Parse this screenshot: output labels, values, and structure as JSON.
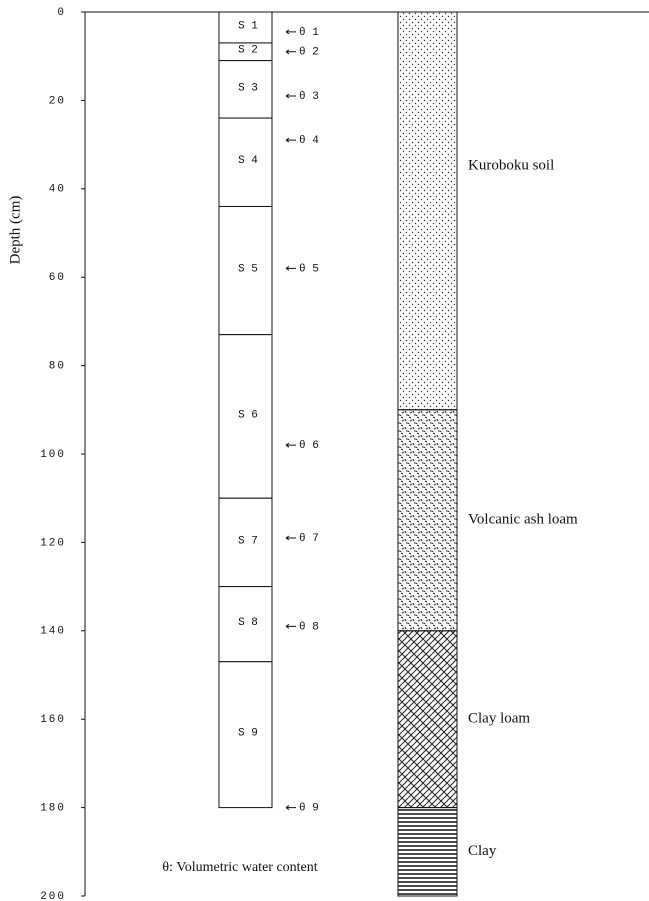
{
  "axis": {
    "label": "Depth (cm)",
    "lim": [
      0,
      200
    ],
    "ticks": [
      0,
      20,
      40,
      60,
      80,
      100,
      120,
      140,
      160,
      180,
      200
    ]
  },
  "sample_layers": [
    {
      "label": "S 1",
      "top": 0,
      "bottom": 7
    },
    {
      "label": "S 2",
      "top": 7,
      "bottom": 11
    },
    {
      "label": "S 3",
      "top": 11,
      "bottom": 24
    },
    {
      "label": "S 4",
      "top": 24,
      "bottom": 44
    },
    {
      "label": "S 5",
      "top": 44,
      "bottom": 73
    },
    {
      "label": "S 6",
      "top": 73,
      "bottom": 110
    },
    {
      "label": "S 7",
      "top": 110,
      "bottom": 130
    },
    {
      "label": "S 8",
      "top": 130,
      "bottom": 147
    },
    {
      "label": "S 9",
      "top": 147,
      "bottom": 180
    }
  ],
  "sensors": [
    {
      "label": "θ 1",
      "depth": 4.5
    },
    {
      "label": "θ 2",
      "depth": 9
    },
    {
      "label": "θ 3",
      "depth": 19
    },
    {
      "label": "θ 4",
      "depth": 29
    },
    {
      "label": "θ 5",
      "depth": 58
    },
    {
      "label": "θ 6",
      "depth": 98
    },
    {
      "label": "θ 7",
      "depth": 119
    },
    {
      "label": "θ 8",
      "depth": 139
    },
    {
      "label": "θ 9",
      "depth": 180
    }
  ],
  "soil_layers": [
    {
      "label": "Kuroboku soil",
      "top": 0,
      "bottom": 90
    },
    {
      "label": "Volcanic ash loam",
      "top": 90,
      "bottom": 140
    },
    {
      "label": "Clay loam",
      "top": 140,
      "bottom": 180
    },
    {
      "label": "Clay",
      "top": 180,
      "bottom": 200
    }
  ],
  "note": "θ: Volumetric water content"
}
